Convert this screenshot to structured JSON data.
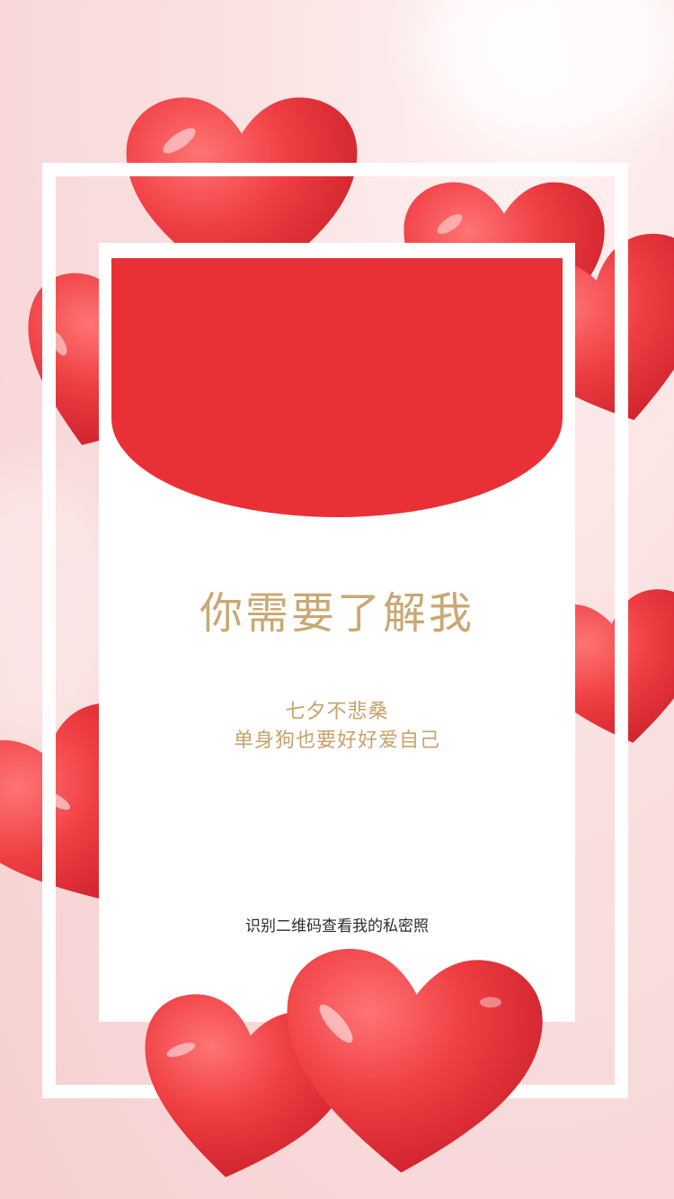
{
  "card": {
    "title": "你需要了解我",
    "subtitle_line1": "七夕不悲桑",
    "subtitle_line2": "单身狗也要好好爱自己",
    "footer": "识别二维码查看我的私密照"
  },
  "colors": {
    "background": "#f8d6d7",
    "heart_red": "#ec3a3e",
    "envelope_red": "#ea3037",
    "gold_text": "#c9a873",
    "frame_white": "#ffffff"
  },
  "decorations": {
    "heart_icon": "heart-icon"
  }
}
